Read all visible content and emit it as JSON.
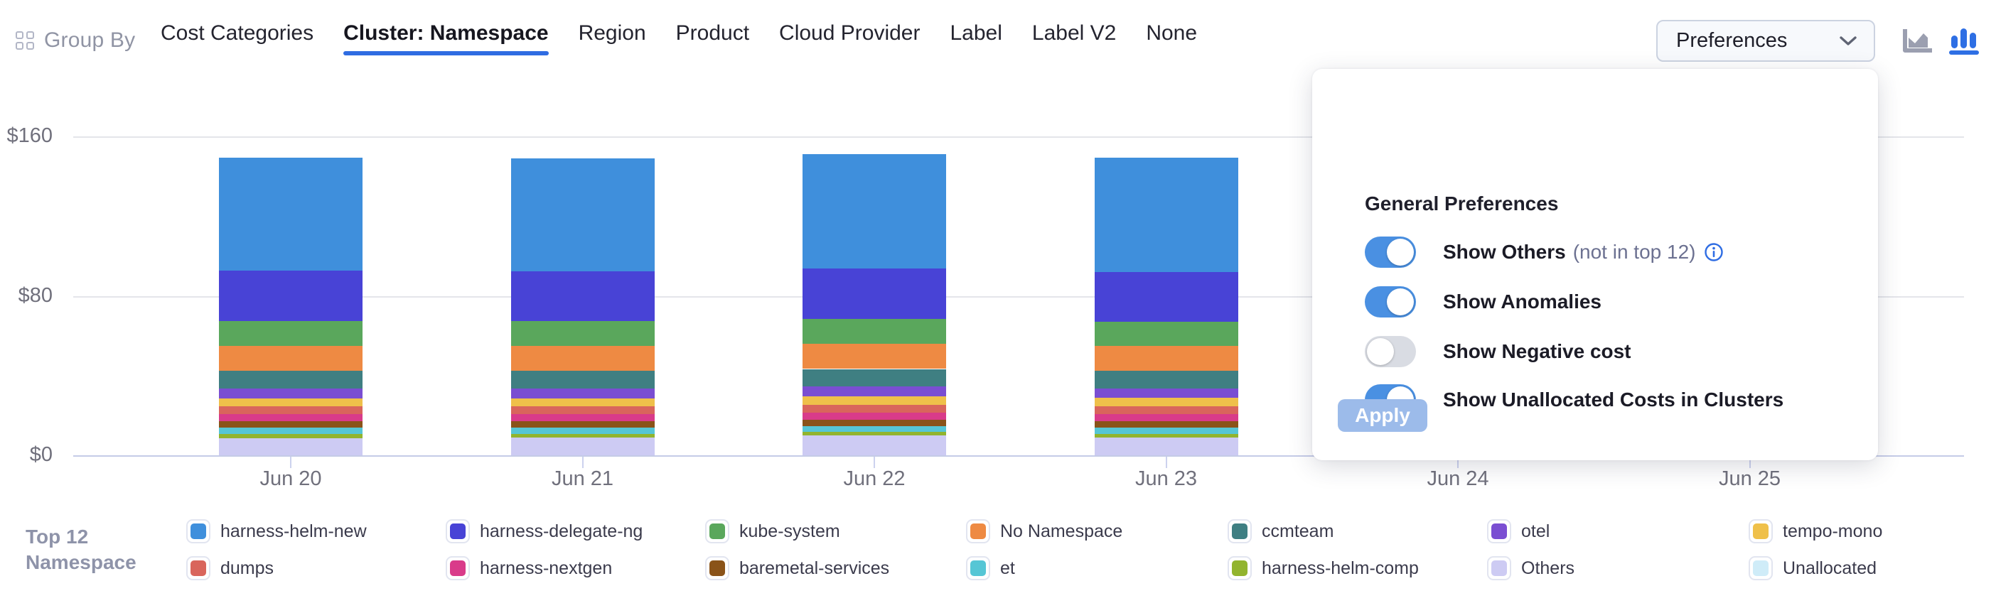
{
  "header": {
    "group_by_label": "Group By",
    "tabs": [
      {
        "label": "Cost Categories",
        "active": false
      },
      {
        "label": "Cluster: Namespace",
        "active": true
      },
      {
        "label": "Region",
        "active": false
      },
      {
        "label": "Product",
        "active": false
      },
      {
        "label": "Cloud Provider",
        "active": false
      },
      {
        "label": "Label",
        "active": false
      },
      {
        "label": "Label V2",
        "active": false
      },
      {
        "label": "None",
        "active": false
      }
    ],
    "preferences_button_label": "Preferences",
    "chart_type_toggle": {
      "area_chart_selected": false,
      "bar_chart_selected": true
    }
  },
  "preferences_panel": {
    "title": "General Preferences",
    "toggles": [
      {
        "label": "Show Others",
        "suffix": "(not in top 12)",
        "has_info_icon": true,
        "on": true
      },
      {
        "label": "Show Anomalies",
        "suffix": "",
        "has_info_icon": false,
        "on": true
      },
      {
        "label": "Show Negative cost",
        "suffix": "",
        "has_info_icon": false,
        "on": false
      },
      {
        "label": "Show Unallocated Costs in Clusters",
        "suffix": "",
        "has_info_icon": false,
        "on": true
      }
    ],
    "apply_label": "Apply",
    "colors": {
      "toggle_on": "#4a90e2",
      "toggle_off": "#d9dce3",
      "apply_bg": "#9cbbea",
      "info_blue": "#2f6de3"
    }
  },
  "chart_data": {
    "type": "bar",
    "stacked": true,
    "x_categories": [
      "Jun 20",
      "Jun 21",
      "Jun 22",
      "Jun 23",
      "Jun 24",
      "Jun 25"
    ],
    "y_ticks": [
      "$0",
      "$80",
      "$160"
    ],
    "ylim": [
      0,
      160
    ],
    "unit": "$",
    "grid": true,
    "note": "Jun 24 and Jun 25 bars are hidden behind the open Preferences panel; values null",
    "series_bottom_to_top": [
      {
        "name": "Others",
        "color": "#cdcbf3",
        "values": [
          8.7,
          8.9,
          10.0,
          9.0,
          null,
          null
        ]
      },
      {
        "name": "harness-helm-comp",
        "color": "#92b42e",
        "values": [
          1.9,
          1.8,
          1.7,
          1.8,
          null,
          null
        ]
      },
      {
        "name": "et",
        "color": "#56c6d5",
        "values": [
          3.2,
          3.1,
          3.0,
          3.1,
          null,
          null
        ]
      },
      {
        "name": "baremetal-services",
        "color": "#8a5319",
        "values": [
          3.2,
          3.2,
          3.1,
          3.2,
          null,
          null
        ]
      },
      {
        "name": "harness-nextgen",
        "color": "#d93b8a",
        "values": [
          3.7,
          3.7,
          3.6,
          3.6,
          null,
          null
        ]
      },
      {
        "name": "dumps",
        "color": "#d9655c",
        "values": [
          3.8,
          3.9,
          4.0,
          3.9,
          null,
          null
        ]
      },
      {
        "name": "tempo-mono",
        "color": "#efc04a",
        "values": [
          4.1,
          4.0,
          4.2,
          4.1,
          null,
          null
        ]
      },
      {
        "name": "otel",
        "color": "#7a4ed2",
        "values": [
          4.8,
          4.9,
          4.8,
          4.8,
          null,
          null
        ]
      },
      {
        "name": "ccmteam",
        "color": "#3f7f82",
        "values": [
          8.9,
          8.8,
          8.9,
          8.8,
          null,
          null
        ]
      },
      {
        "name": "No Namespace",
        "color": "#ee8a43",
        "values": [
          12.7,
          12.5,
          12.6,
          12.5,
          null,
          null
        ]
      },
      {
        "name": "kube-system",
        "color": "#5aa75c",
        "values": [
          12.5,
          12.4,
          12.4,
          12.3,
          null,
          null
        ]
      },
      {
        "name": "harness-delegate-ng",
        "color": "#4843d6",
        "values": [
          25.0,
          25.2,
          25.3,
          25.0,
          null,
          null
        ]
      },
      {
        "name": "harness-helm-new",
        "color": "#3f8fdc",
        "values": [
          57.0,
          56.6,
          57.5,
          57.2,
          null,
          null
        ]
      }
    ]
  },
  "legend": {
    "title_lines": [
      "Top 12",
      "Namespace"
    ],
    "rows": [
      [
        {
          "label": "harness-helm-new",
          "color": "#3f8fdc"
        },
        {
          "label": "harness-delegate-ng",
          "color": "#4843d6"
        },
        {
          "label": "kube-system",
          "color": "#5aa75c"
        },
        {
          "label": "No Namespace",
          "color": "#ee8a43"
        },
        {
          "label": "ccmteam",
          "color": "#3f7f82"
        },
        {
          "label": "otel",
          "color": "#7a4ed2"
        },
        {
          "label": "tempo-mono",
          "color": "#efc04a"
        }
      ],
      [
        {
          "label": "dumps",
          "color": "#d9655c"
        },
        {
          "label": "harness-nextgen",
          "color": "#d93b8a"
        },
        {
          "label": "baremetal-services",
          "color": "#8a5319"
        },
        {
          "label": "et",
          "color": "#56c6d5"
        },
        {
          "label": "harness-helm-comp",
          "color": "#92b42e"
        },
        {
          "label": "Others",
          "color": "#cdcbf3"
        },
        {
          "label": "Unallocated",
          "color": "#cfecf8"
        }
      ]
    ]
  }
}
